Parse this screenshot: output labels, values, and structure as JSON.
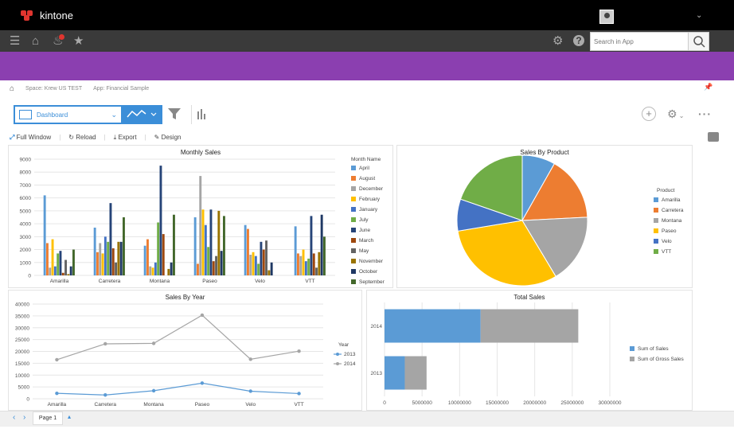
{
  "app": {
    "brand": "kintone"
  },
  "search": {
    "placeholder": "Search in App"
  },
  "breadcrumb": {
    "space": "Space: Krew US TEST",
    "app": "App: Financial Sample"
  },
  "view": {
    "selected": "Dashboard"
  },
  "toolbar": {
    "full_window": "Full Window",
    "reload": "Reload",
    "export": "Export",
    "design": "Design"
  },
  "footer": {
    "page_tab": "Page 1"
  },
  "colors": {
    "accent": "#3b8ed8",
    "header_band": "#8b3fb0",
    "topbar": "#000000",
    "navbar": "#3a3a3a"
  },
  "chart_data": [
    {
      "type": "bar",
      "title": "Monthly Sales",
      "legend_title": "Month Name",
      "legend_position": "right",
      "categories": [
        "Amarilla",
        "Carretera",
        "Montana",
        "Paseo",
        "Velo",
        "VTT"
      ],
      "ylim": [
        0,
        9000
      ],
      "yticks": [
        0,
        1000,
        2000,
        3000,
        4000,
        5000,
        6000,
        7000,
        8000,
        9000
      ],
      "series": [
        {
          "name": "April",
          "color": "#5b9bd5",
          "values": [
            6200,
            3700,
            2300,
            4500,
            3900,
            3800
          ]
        },
        {
          "name": "August",
          "color": "#ed7d31",
          "values": [
            2500,
            1800,
            2800,
            900,
            3600,
            1700
          ]
        },
        {
          "name": "December",
          "color": "#a5a5a5",
          "values": [
            600,
            2500,
            700,
            7700,
            1600,
            1500
          ]
        },
        {
          "name": "February",
          "color": "#ffc000",
          "values": [
            2800,
            1700,
            600,
            5100,
            1800,
            2000
          ]
        },
        {
          "name": "January",
          "color": "#4472c4",
          "values": [
            700,
            3000,
            1000,
            3900,
            1500,
            1100
          ]
        },
        {
          "name": "July",
          "color": "#70ad47",
          "values": [
            1700,
            2600,
            4100,
            2200,
            900,
            1300
          ]
        },
        {
          "name": "June",
          "color": "#264478",
          "values": [
            1900,
            5600,
            8500,
            5100,
            2600,
            4600
          ]
        },
        {
          "name": "March",
          "color": "#9e480e",
          "values": [
            200,
            2100,
            3200,
            1100,
            2000,
            1700
          ]
        },
        {
          "name": "May",
          "color": "#636363",
          "values": [
            1200,
            1000,
            0,
            1500,
            2700,
            600
          ]
        },
        {
          "name": "November",
          "color": "#997300",
          "values": [
            100,
            2600,
            500,
            5000,
            400,
            1800
          ]
        },
        {
          "name": "October",
          "color": "#1f3864",
          "values": [
            700,
            2600,
            1000,
            1900,
            1000,
            4700
          ]
        },
        {
          "name": "September",
          "color": "#43682b",
          "values": [
            2000,
            4500,
            4700,
            4600,
            0,
            3000
          ]
        }
      ]
    },
    {
      "type": "pie",
      "title": "Sales By Product",
      "legend_title": "Product",
      "legend_position": "right",
      "categories": [
        "Amarilla",
        "Carretera",
        "Montana",
        "Paseo",
        "Velo",
        "VTT"
      ],
      "values": [
        8.2,
        16.0,
        17.2,
        31.0,
        7.9,
        19.7
      ],
      "colors": [
        "#5b9bd5",
        "#ed7d31",
        "#a5a5a5",
        "#ffc000",
        "#4472c4",
        "#70ad47"
      ]
    },
    {
      "type": "line",
      "title": "Sales By Year",
      "legend_title": "Year",
      "legend_position": "right",
      "categories": [
        "Amarilla",
        "Carretera",
        "Montana",
        "Paseo",
        "Velo",
        "VTT"
      ],
      "ylim": [
        0,
        40000
      ],
      "yticks": [
        0,
        5000,
        10000,
        15000,
        20000,
        25000,
        30000,
        35000,
        40000
      ],
      "series": [
        {
          "name": "2013",
          "color": "#5b9bd5",
          "values": [
            2300,
            1600,
            3400,
            6600,
            3200,
            2200
          ]
        },
        {
          "name": "2014",
          "color": "#a5a5a5",
          "values": [
            16500,
            23200,
            23400,
            35300,
            16700,
            20100
          ]
        }
      ]
    },
    {
      "type": "bar",
      "orientation": "horizontal",
      "stacked": true,
      "title": "Total Sales",
      "legend_position": "right",
      "categories": [
        "2014",
        "2013"
      ],
      "xlim": [
        0,
        30000000
      ],
      "xticks": [
        0,
        5000000,
        10000000,
        15000000,
        20000000,
        25000000,
        30000000
      ],
      "series": [
        {
          "name": "Sum of Sales",
          "color": "#5b9bd5",
          "values": [
            12800000,
            2700000
          ]
        },
        {
          "name": "Sum of Gross Sales",
          "color": "#a5a5a5",
          "values": [
            13000000,
            2900000
          ]
        }
      ]
    }
  ]
}
